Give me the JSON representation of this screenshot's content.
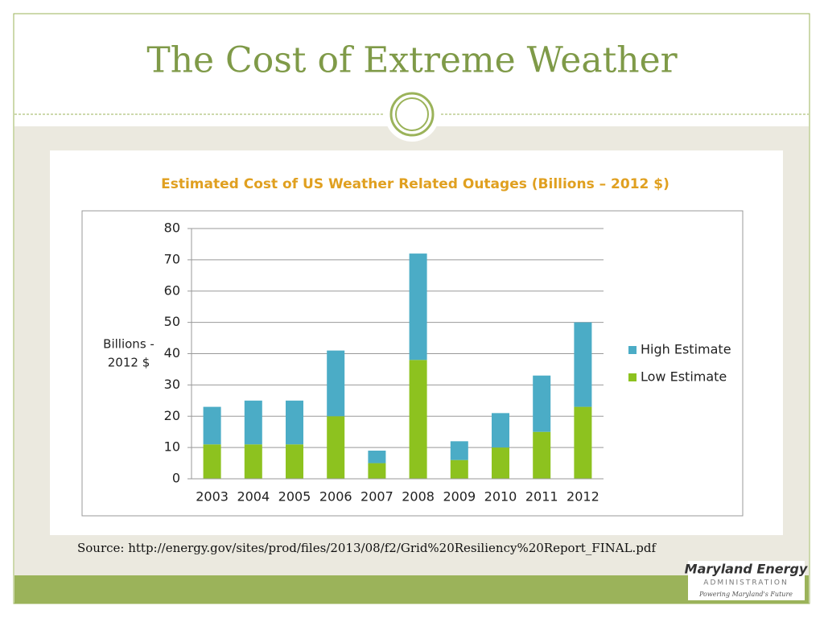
{
  "slide": {
    "title": "The Cost of Extreme Weather",
    "source": "Source: http://energy.gov/sites/prod/files/2013/08/f2/Grid%20Resiliency%20Report_FINAL.pdf",
    "logo": {
      "name": "Maryland Energy",
      "subtitle": "ADMINISTRATION",
      "tagline": "Powering Maryland's Future"
    }
  },
  "chart_data": {
    "type": "stacked_bar",
    "title": "Estimated Cost of US Weather Related Outages (Billions – 2012 $)",
    "y_label": [
      "Billions -",
      "2012 $"
    ],
    "categories": [
      "2003",
      "2004",
      "2005",
      "2006",
      "2007",
      "2008",
      "2009",
      "2010",
      "2011",
      "2012"
    ],
    "series": [
      {
        "name": "Low Estimate",
        "color": "#8dc21f",
        "values": [
          11,
          11,
          11,
          20,
          5,
          38,
          6,
          10,
          15,
          23
        ]
      },
      {
        "name": "High Estimate",
        "color": "#4bacc6",
        "values": [
          12,
          14,
          14,
          21,
          4,
          34,
          6,
          11,
          18,
          27
        ]
      }
    ],
    "ylim": [
      0,
      80
    ],
    "yticks": [
      0,
      10,
      20,
      30,
      40,
      50,
      60,
      70,
      80
    ],
    "grid": true,
    "legend": "right"
  }
}
